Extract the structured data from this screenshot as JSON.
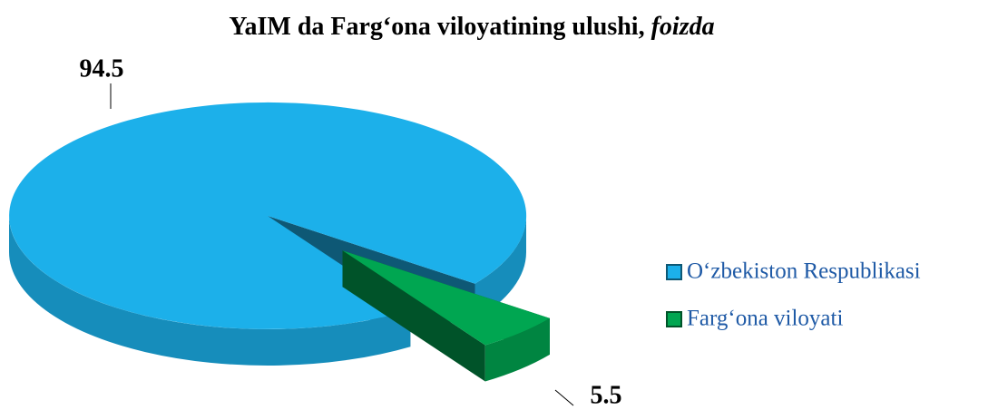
{
  "chart_data": {
    "type": "pie3d",
    "title": "YaIM da Farg‘ona viloyatining ulushi,",
    "title_unit": "foizda",
    "categories": [
      "O‘zbekiston Respublikasi",
      "Farg‘ona viloyati"
    ],
    "values": [
      94.5,
      5.5
    ],
    "colors": [
      "#1cb0ea",
      "#00a651"
    ],
    "legend": "right"
  }
}
